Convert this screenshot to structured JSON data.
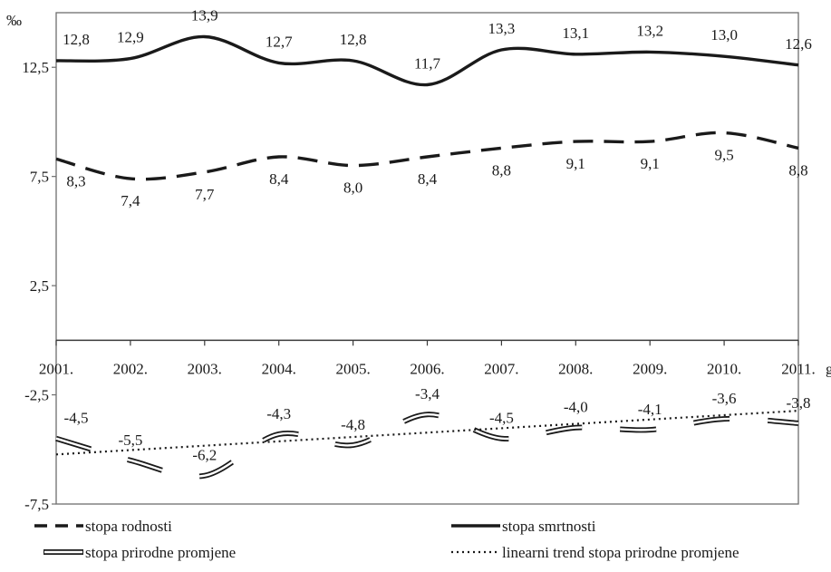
{
  "chart_data": {
    "type": "line",
    "unit_label": "‰",
    "x_suffix": "g.",
    "categories": [
      "2001.",
      "2002.",
      "2003.",
      "2004.",
      "2005.",
      "2006.",
      "2007.",
      "2008.",
      "2009.",
      "2010.",
      "2011."
    ],
    "y_ticks": [
      "12,5",
      "7,5",
      "2,5",
      "-2,5",
      "-7,5"
    ],
    "ylim": [
      -7.5,
      15
    ],
    "grid": false,
    "legend_position": "bottom",
    "series": [
      {
        "name": "stopa rodnosti",
        "style": "dashed",
        "values": [
          8.3,
          7.4,
          7.7,
          8.4,
          8.0,
          8.4,
          8.8,
          9.1,
          9.1,
          9.5,
          8.8
        ],
        "labels": [
          "8,3",
          "7,4",
          "7,7",
          "8,4",
          "8,0",
          "8,4",
          "8,8",
          "9,1",
          "9,1",
          "9,5",
          "8,8"
        ]
      },
      {
        "name": "stopa smrtnosti",
        "style": "solid",
        "values": [
          12.8,
          12.9,
          13.9,
          12.7,
          12.8,
          11.7,
          13.3,
          13.1,
          13.2,
          13.0,
          12.6
        ],
        "labels": [
          "12,8",
          "12,9",
          "13,9",
          "12,7",
          "12,8",
          "11,7",
          "13,3",
          "13,1",
          "13,2",
          "13,0",
          "12,6"
        ]
      },
      {
        "name": "stopa prirodne promjene",
        "style": "double",
        "values": [
          -4.5,
          -5.5,
          -6.2,
          -4.3,
          -4.8,
          -3.4,
          -4.5,
          -4.0,
          -4.1,
          -3.6,
          -3.8
        ],
        "labels": [
          "-4,5",
          "-5,5",
          "-6,2",
          "-4,3",
          "-4,8",
          "-3,4",
          "-4,5",
          "-4,0",
          "-4,1",
          "-3,6",
          "-3,8"
        ]
      },
      {
        "name": "linearni trend stopa prirodne promjene",
        "style": "dotted",
        "values": [
          -5.23,
          -5.03,
          -4.83,
          -4.63,
          -4.43,
          -4.23,
          -4.03,
          -3.83,
          -3.63,
          -3.43,
          -3.23
        ],
        "labels": []
      }
    ]
  }
}
